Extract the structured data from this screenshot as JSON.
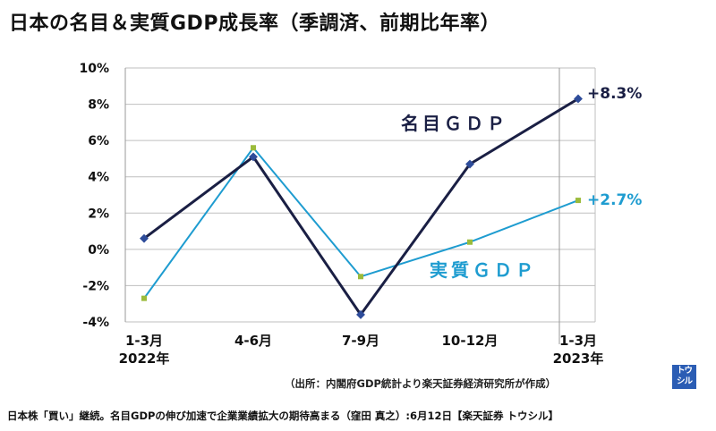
{
  "title": "日本の名目＆実質GDP成長率（季調済、前期比年率）",
  "source_note": "（出所：内閣府GDP統計より楽天証券経済研究所が作成）",
  "footer": "日本株「買い」継続。名目GDPの伸び加速で企業業績拡大の期待高まる（窪田 真之）:6月12日【楽天証券 トウシル】",
  "logo": {
    "line1": "トウ",
    "line2": "シル"
  },
  "colors": {
    "nominal": "#1a1f44",
    "real": "#1e9cd0",
    "grid": "#bfbfbf",
    "logo": "#2b5db4"
  },
  "chart_data": {
    "type": "line",
    "categories": [
      "1-3月|2022年",
      "4-6月",
      "7-9月",
      "10-12月",
      "1-3月|2023年"
    ],
    "ylim": [
      -4,
      10
    ],
    "yticks": [
      "-4%",
      "-2%",
      "0%",
      "2%",
      "4%",
      "6%",
      "8%",
      "10%"
    ],
    "ytick_values": [
      -4,
      -2,
      0,
      2,
      4,
      6,
      8,
      10
    ],
    "grid": true,
    "series": [
      {
        "name": "名目ＧＤＰ",
        "values": [
          0.6,
          5.1,
          -3.6,
          4.7,
          8.3
        ],
        "end_label": "+8.3%"
      },
      {
        "name": "実質ＧＤＰ",
        "values": [
          -2.7,
          5.6,
          -1.5,
          0.4,
          2.7
        ],
        "end_label": "+2.7%"
      }
    ]
  }
}
